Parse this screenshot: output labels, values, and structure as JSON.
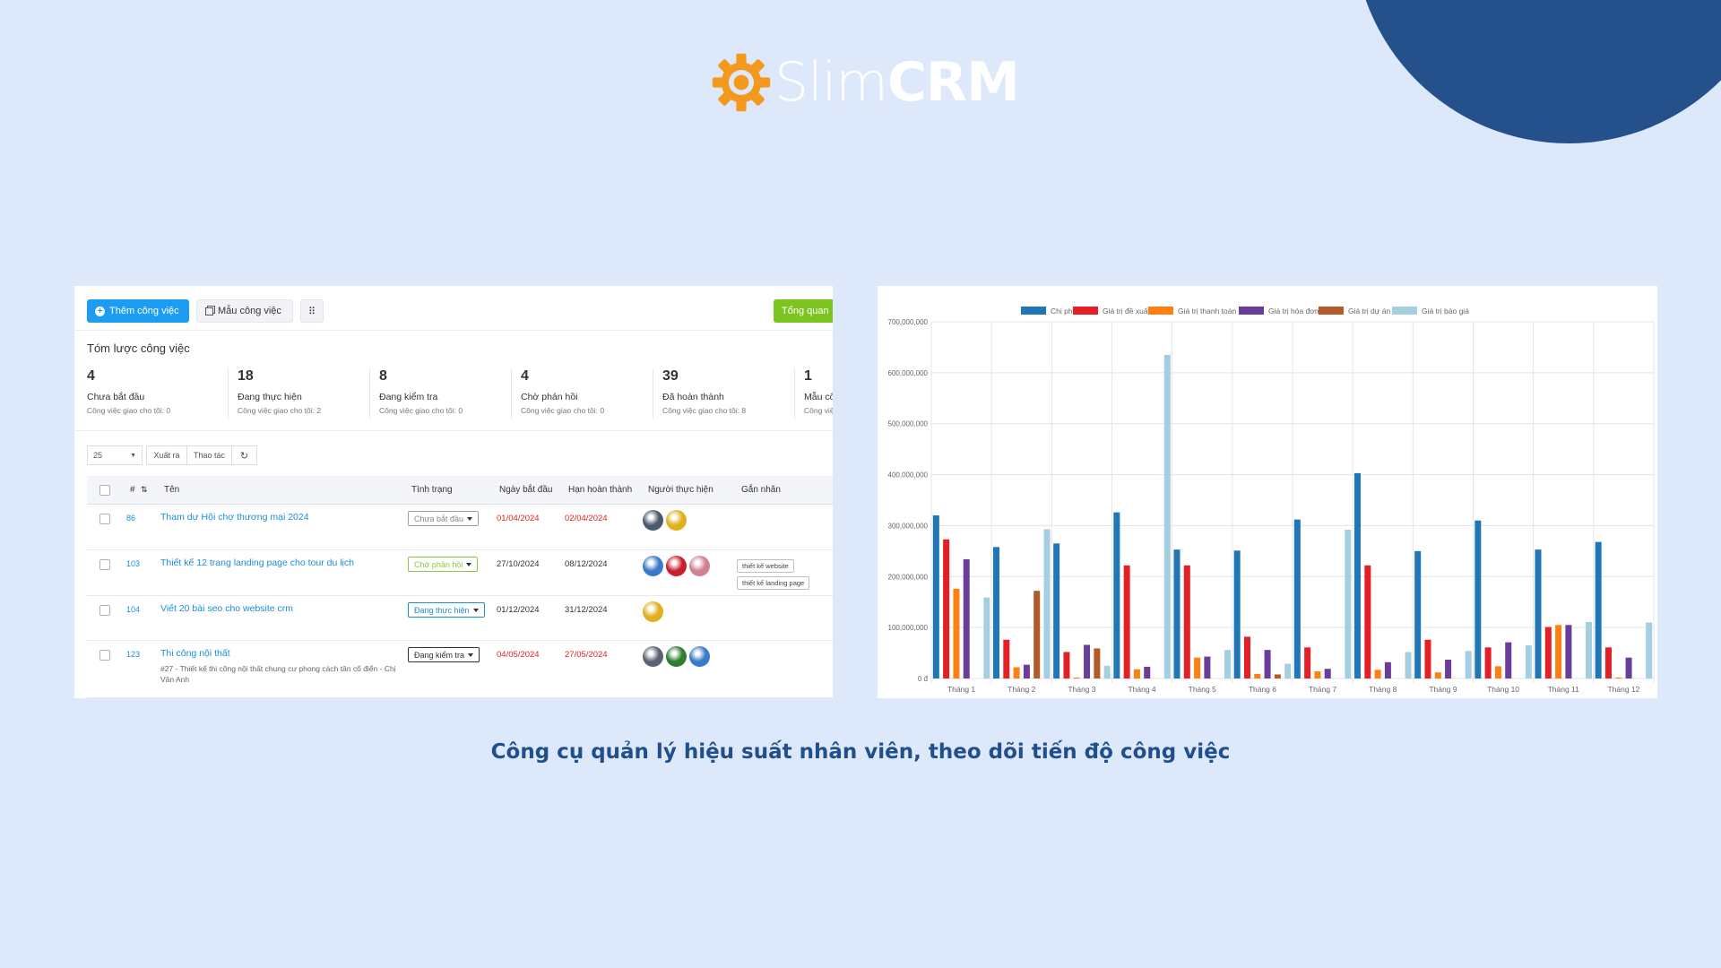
{
  "brand": {
    "name_light": "Slim",
    "name_bold": "CRM",
    "accent": "#f39a1e"
  },
  "caption": "Công cụ quản lý hiệu suất nhân viên, theo dõi tiến độ công việc",
  "toolbar": {
    "add_task": "Thêm công việc",
    "templates": "Mẫu công việc",
    "overview": "Tổng quan"
  },
  "summary": {
    "title": "Tóm lược công việc",
    "stats": [
      {
        "value": "4",
        "label": "Chưa bắt đầu",
        "sub": "Công việc giao cho tôi: 0"
      },
      {
        "value": "18",
        "label": "Đang thực hiện",
        "sub": "Công việc giao cho tôi: 2"
      },
      {
        "value": "8",
        "label": "Đang kiểm tra",
        "sub": "Công việc giao cho tôi: 0"
      },
      {
        "value": "4",
        "label": "Chờ phản hồi",
        "sub": "Công việc giao cho tôi: 0"
      },
      {
        "value": "39",
        "label": "Đã hoàn thành",
        "sub": "Công việc giao cho tôi: 8"
      },
      {
        "value": "1",
        "label": "Mẫu côn",
        "sub": "Công việ"
      }
    ]
  },
  "controls": {
    "page_size": "25",
    "export": "Xuất ra",
    "actions": "Thao tác"
  },
  "table": {
    "headers": {
      "hash": "#",
      "name": "Tên",
      "status": "Tình trạng",
      "start": "Ngày bắt đầu",
      "due": "Hạn hoàn thành",
      "assignees": "Người thực hiện",
      "tags": "Gắn nhãn"
    },
    "rows": [
      {
        "id": "86",
        "name": "Tham dự Hội chợ thương mại 2024",
        "desc": "",
        "status": "Chưa bắt đầu",
        "status_color": "#888888",
        "start": "01/04/2024",
        "start_red": true,
        "due": "02/04/2024",
        "due_red": true,
        "tags": []
      },
      {
        "id": "103",
        "name": "Thiết kế 12 trang landing page cho tour du lịch",
        "desc": "",
        "status": "Chờ phản hồi",
        "status_color": "#8cc63f",
        "start": "27/10/2024",
        "start_red": false,
        "due": "08/12/2024",
        "due_red": false,
        "tags": [
          "thiết kế website",
          "thiết kế landing page"
        ]
      },
      {
        "id": "104",
        "name": "Viết 20 bài seo cho website crm",
        "desc": "",
        "status": "Đang thực hiện",
        "status_color": "#1a8ed8",
        "start": "01/12/2024",
        "start_red": false,
        "due": "31/12/2024",
        "due_red": false,
        "tags": []
      },
      {
        "id": "123",
        "name": "Thi công nội thất",
        "desc": "#27 - Thiết kế thi công nội thất chung cư phong cách tân cổ điển - Chị Vân Anh",
        "status": "Đang kiểm tra",
        "status_color": "#333333",
        "start": "04/05/2024",
        "start_red": true,
        "due": "27/05/2024",
        "due_red": true,
        "tags": []
      }
    ]
  },
  "chart_data": {
    "type": "bar",
    "categories": [
      "Tháng 1",
      "Tháng 2",
      "Tháng 3",
      "Tháng 4",
      "Tháng 5",
      "Tháng 6",
      "Tháng 7",
      "Tháng 8",
      "Tháng 9",
      "Tháng 10",
      "Tháng 11",
      "Tháng 12"
    ],
    "ylim": [
      0,
      700000000
    ],
    "yticks": [
      "0 đ",
      "100,000,000",
      "200,000,000",
      "300,000,000",
      "400,000,000",
      "500,000,000",
      "600,000,000",
      "700,000,000"
    ],
    "legend_position": "top",
    "series": [
      {
        "name": "Chi phí",
        "color": "#2176b7",
        "values": [
          320000000,
          258000000,
          265000000,
          326000000,
          253000000,
          251000000,
          312000000,
          403000000,
          250000000,
          310000000,
          253000000,
          268000000
        ]
      },
      {
        "name": "Giá trị đề xuất",
        "color": "#e41f26",
        "values": [
          273000000,
          76000000,
          52000000,
          222000000,
          222000000,
          82000000,
          61000000,
          222000000,
          76000000,
          61000000,
          101000000,
          61000000
        ]
      },
      {
        "name": "Giá trị thanh toán",
        "color": "#ff8012",
        "values": [
          176000000,
          22000000,
          2000000,
          18000000,
          41000000,
          9000000,
          14000000,
          17000000,
          12000000,
          24000000,
          105000000,
          2000000
        ]
      },
      {
        "name": "Giá trị hóa đơn",
        "color": "#6a3d9a",
        "values": [
          234000000,
          27000000,
          66000000,
          23000000,
          43000000,
          56000000,
          19000000,
          32000000,
          37000000,
          71000000,
          105000000,
          41000000
        ]
      },
      {
        "name": "Giá trị dự án",
        "color": "#b35a2b",
        "values": [
          0,
          172000000,
          59000000,
          0,
          0,
          8000000,
          0,
          0,
          0,
          0,
          0,
          0
        ]
      },
      {
        "name": "Giá trị báo giá",
        "color": "#a6cee3",
        "values": [
          159000000,
          293000000,
          25000000,
          635000000,
          56000000,
          29000000,
          292000000,
          52000000,
          54000000,
          65000000,
          111000000,
          110000000
        ]
      }
    ]
  }
}
